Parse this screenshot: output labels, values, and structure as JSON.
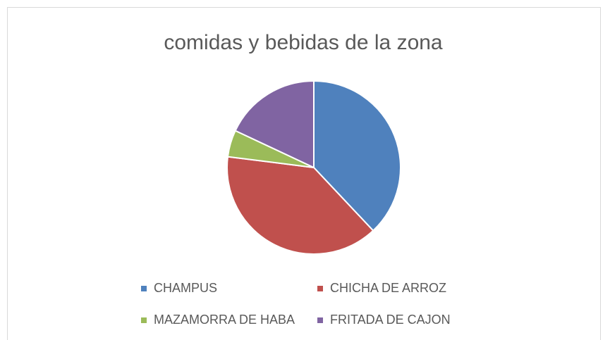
{
  "chart_data": {
    "type": "pie",
    "title": "comidas y bebidas de la zona",
    "categories": [
      "CHAMPUS",
      "CHICHA DE ARROZ",
      "MAZAMORRA DE HABA",
      "FRITADA DE CAJON"
    ],
    "values": [
      38,
      39,
      5,
      18
    ],
    "colors": [
      "#4f81bd",
      "#c0504d",
      "#9bbb59",
      "#8064a2"
    ],
    "legend": "bottom"
  }
}
